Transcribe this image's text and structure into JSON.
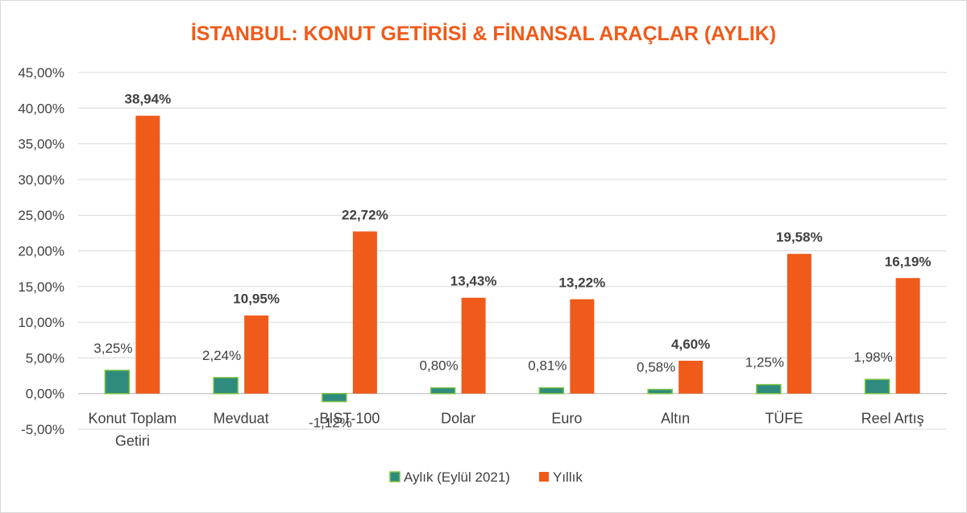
{
  "chart_data": {
    "type": "bar",
    "title": "İSTANBUL: KONUT GETİRİSİ & FİNANSAL ARAÇLAR (AYLIK)",
    "categories": [
      "Konut Toplam Getiri",
      "Mevduat",
      "BIST-100",
      "Dolar",
      "Euro",
      "Altın",
      "TÜFE",
      "Reel Artış"
    ],
    "category_lines": [
      [
        "Konut Toplam",
        "Getiri"
      ],
      [
        "Mevduat"
      ],
      [
        "BIST-100"
      ],
      [
        "Dolar"
      ],
      [
        "Euro"
      ],
      [
        "Altın"
      ],
      [
        "TÜFE"
      ],
      [
        "Reel Artış"
      ]
    ],
    "series": [
      {
        "name": "Aylık (Eylül 2021)",
        "color": "#2e8b7e",
        "border": "#7bc142",
        "values": [
          3.25,
          2.24,
          -1.12,
          0.8,
          0.81,
          0.58,
          1.25,
          1.98
        ],
        "labels": [
          "3,25%",
          "2,24%",
          "-1,12%",
          "0,80%",
          "0,81%",
          "0,58%",
          "1,25%",
          "1,98%"
        ]
      },
      {
        "name": "Yıllık",
        "color": "#f05a1a",
        "values": [
          38.94,
          10.95,
          22.72,
          13.43,
          13.22,
          4.6,
          19.58,
          16.19
        ],
        "labels": [
          "38,94%",
          "10,95%",
          "22,72%",
          "13,43%",
          "13,22%",
          "4,60%",
          "19,58%",
          "16,19%"
        ]
      }
    ],
    "ylim": [
      -5,
      45
    ],
    "y_ticks": [
      45,
      40,
      35,
      30,
      25,
      20,
      15,
      10,
      5,
      0,
      -5
    ],
    "y_tick_labels": [
      "45,00%",
      "40,00%",
      "35,00%",
      "30,00%",
      "25,00%",
      "20,00%",
      "15,00%",
      "10,00%",
      "5,00%",
      "0,00%",
      "-5,00%"
    ],
    "grid": true,
    "legend_position": "bottom",
    "xlabel": "",
    "ylabel": ""
  }
}
